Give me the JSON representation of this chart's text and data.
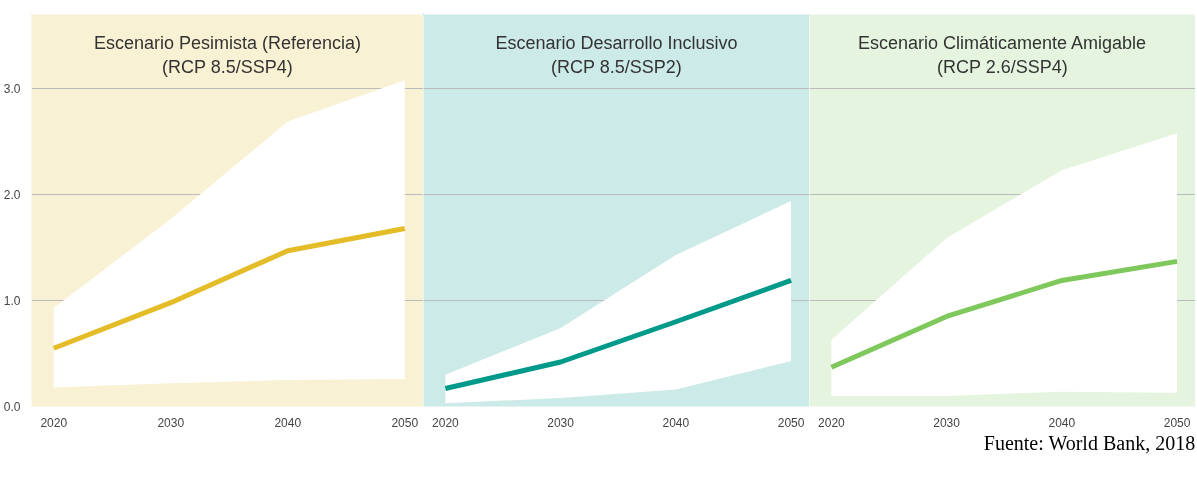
{
  "chart_data": [
    {
      "type": "line",
      "title": "Escenario Pesimista (Referencia)",
      "subtitle": "(RCP 8.5/SSP4)",
      "x": [
        2020,
        2030,
        2040,
        2050
      ],
      "xlim": [
        2018.1,
        2051.6
      ],
      "xticks": [
        2020,
        2030,
        2040,
        2050
      ],
      "ylim": [
        0,
        3.7
      ],
      "yticks": [
        {
          "value": 0,
          "label": "0.0"
        },
        {
          "value": 1,
          "label": "1.0"
        },
        {
          "value": 2,
          "label": "2.0"
        },
        {
          "value": 3,
          "label": "3.0"
        }
      ],
      "grid": "y",
      "series": [
        {
          "color": "#e3bc27",
          "values": [
            0.55,
            0.98,
            1.47,
            1.68
          ],
          "lower": [
            0.18,
            0.22,
            0.25,
            0.26
          ],
          "upper": [
            0.93,
            1.77,
            2.69,
            3.08
          ]
        }
      ]
    },
    {
      "type": "line",
      "title": "Escenario Desarrollo Inclusivo",
      "subtitle": "(RCP 8.5/SSP2)",
      "x": [
        2020,
        2030,
        2040,
        2050
      ],
      "xlim": [
        2018.1,
        2051.6
      ],
      "xticks": [
        2020,
        2030,
        2040,
        2050
      ],
      "ylim": [
        0,
        3.7
      ],
      "yticks": [
        0,
        1,
        2,
        3
      ],
      "grid": "y",
      "tick_labels": "x",
      "series": [
        {
          "color": "#009a8a",
          "values": [
            0.17,
            0.42,
            0.8,
            1.19
          ],
          "lower": [
            0.03,
            0.08,
            0.16,
            0.43
          ],
          "upper": [
            0.3,
            0.74,
            1.43,
            1.94
          ]
        }
      ]
    },
    {
      "type": "line",
      "title": "Escenario Climáticamente Amigable",
      "subtitle": "(RCP 2.6/SSP4)",
      "x": [
        2020,
        2030,
        2040,
        2050
      ],
      "xlim": [
        2018.1,
        2051.6
      ],
      "xticks": [
        2020,
        2030,
        2040,
        2050
      ],
      "ylim": [
        0,
        3.7
      ],
      "yticks": [
        0,
        1,
        2,
        3
      ],
      "grid": "y",
      "tick_labels": "x",
      "series": [
        {
          "color": "#7fc85c",
          "values": [
            0.37,
            0.85,
            1.19,
            1.37
          ],
          "lower": [
            0.1,
            0.1,
            0.14,
            0.13
          ],
          "upper": [
            0.63,
            1.59,
            2.23,
            2.58
          ]
        }
      ],
      "annotations": [
        "Fuente: World Bank, 2018"
      ]
    }
  ]
}
